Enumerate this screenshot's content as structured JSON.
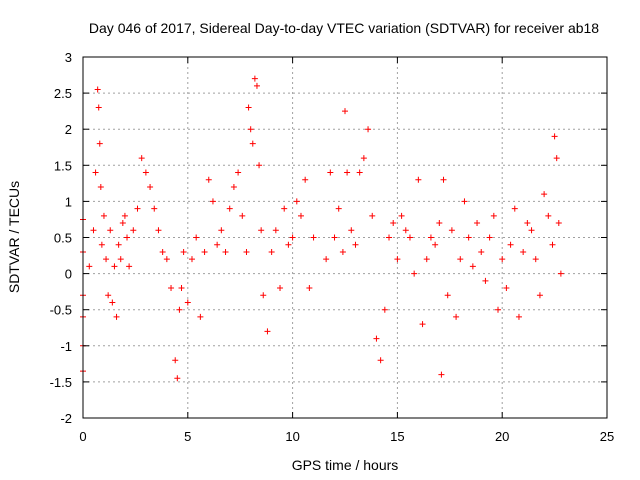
{
  "chart_data": {
    "type": "scatter",
    "title": "Day 046 of 2017, Sidereal Day-to-day VTEC variation (SDTVAR) for receiver ab18",
    "xlabel": "GPS time / hours",
    "ylabel": "SDTVAR / TECUs",
    "xlim": [
      0,
      25
    ],
    "ylim": [
      -2,
      3
    ],
    "xticks": [
      "0",
      "5",
      "10",
      "15",
      "20",
      "25"
    ],
    "yticks": [
      "-2",
      "-1.5",
      "-1",
      "-0.5",
      "0",
      "0.5",
      "1",
      "1.5",
      "2",
      "2.5",
      "3"
    ],
    "grid": true,
    "marker": "+",
    "color": "#ff0000",
    "series": [
      {
        "name": "SDTVAR",
        "x": [
          0.0,
          0.0,
          0.0,
          0.0,
          0.0,
          0.0,
          0.3,
          0.5,
          0.6,
          0.7,
          0.75,
          0.8,
          0.85,
          0.9,
          1.0,
          1.1,
          1.2,
          1.3,
          1.4,
          1.5,
          1.6,
          1.7,
          1.8,
          1.9,
          2.0,
          2.1,
          2.2,
          2.4,
          2.6,
          2.8,
          3.0,
          3.2,
          3.4,
          3.6,
          3.8,
          4.0,
          4.2,
          4.4,
          4.5,
          4.6,
          4.7,
          4.8,
          5.0,
          5.2,
          5.4,
          5.6,
          5.8,
          6.0,
          6.2,
          6.4,
          6.6,
          6.8,
          7.0,
          7.2,
          7.4,
          7.6,
          7.8,
          7.9,
          8.0,
          8.1,
          8.2,
          8.3,
          8.4,
          8.5,
          8.6,
          8.8,
          9.0,
          9.2,
          9.4,
          9.6,
          9.8,
          10.0,
          10.2,
          10.4,
          10.6,
          10.8,
          11.0,
          11.6,
          11.8,
          12.0,
          12.2,
          12.4,
          12.5,
          12.6,
          12.8,
          13.0,
          13.2,
          13.4,
          13.6,
          13.8,
          14.0,
          14.2,
          14.4,
          14.6,
          14.8,
          15.0,
          15.2,
          15.4,
          15.6,
          15.8,
          16.0,
          16.2,
          16.4,
          16.6,
          16.8,
          17.0,
          17.1,
          17.2,
          17.4,
          17.6,
          17.8,
          18.0,
          18.2,
          18.4,
          18.6,
          18.8,
          19.0,
          19.2,
          19.4,
          19.6,
          19.8,
          20.0,
          20.2,
          20.4,
          20.6,
          20.8,
          21.0,
          21.2,
          21.4,
          21.6,
          21.8,
          22.0,
          22.2,
          22.4,
          22.5,
          22.6,
          22.7,
          22.8
        ],
        "y": [
          0.75,
          0.3,
          -0.3,
          -0.6,
          -1.0,
          -1.35,
          0.1,
          0.6,
          1.4,
          2.55,
          2.3,
          1.8,
          1.2,
          0.4,
          0.8,
          0.2,
          -0.3,
          0.6,
          -0.4,
          0.1,
          -0.6,
          0.4,
          0.2,
          0.7,
          0.8,
          0.5,
          0.1,
          0.6,
          0.9,
          1.6,
          1.4,
          1.2,
          0.9,
          0.6,
          0.3,
          0.2,
          -0.2,
          -1.2,
          -1.45,
          -0.5,
          -0.2,
          0.3,
          -0.4,
          0.2,
          0.5,
          -0.6,
          0.3,
          1.3,
          1.0,
          0.4,
          0.6,
          0.3,
          0.9,
          1.2,
          1.4,
          0.8,
          0.3,
          2.3,
          2.0,
          1.8,
          2.7,
          2.6,
          1.5,
          0.6,
          -0.3,
          -0.8,
          0.3,
          0.6,
          -0.2,
          0.9,
          0.4,
          0.5,
          1.0,
          0.8,
          1.3,
          -0.2,
          0.5,
          0.2,
          1.4,
          0.5,
          0.9,
          0.3,
          2.25,
          1.4,
          0.6,
          0.4,
          1.4,
          1.6,
          2.0,
          0.8,
          -0.9,
          -1.2,
          -0.5,
          0.5,
          0.7,
          0.2,
          0.8,
          0.6,
          0.5,
          0.0,
          1.3,
          -0.7,
          0.2,
          0.5,
          0.4,
          0.7,
          -1.4,
          1.3,
          -0.3,
          0.6,
          -0.6,
          0.2,
          1.0,
          0.5,
          0.1,
          0.7,
          0.3,
          -0.1,
          0.5,
          0.8,
          -0.5,
          0.2,
          -0.2,
          0.4,
          0.9,
          -0.6,
          0.3,
          0.7,
          0.6,
          0.2,
          -0.3,
          1.1,
          0.8,
          0.4,
          1.9,
          1.6,
          0.7,
          0.0
        ]
      }
    ]
  }
}
